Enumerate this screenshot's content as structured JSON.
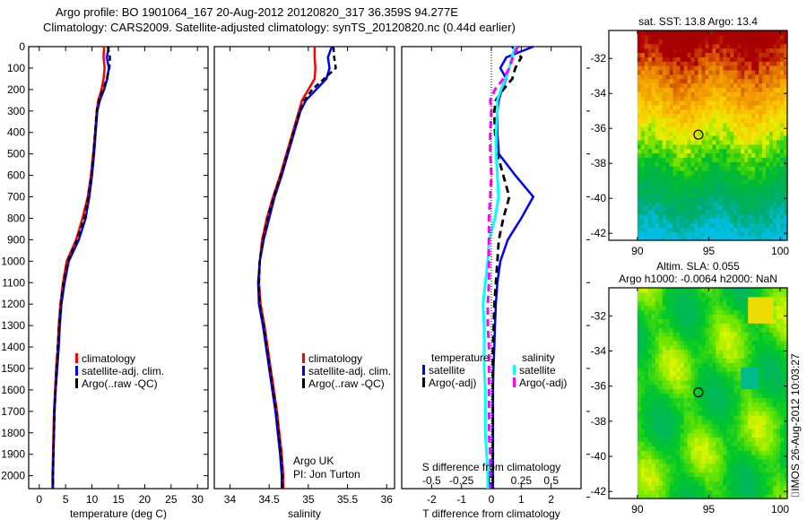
{
  "header": {
    "line1": "Argo profile: BO 1901064_167 20-Aug-2012 20120820_317 36.359S 94.277E",
    "line2": "Climatology: CARS2009. Satellite-adjusted climatology: synTS_20120820.nc (0.44d earlier)"
  },
  "colors": {
    "climatology": "#ff0000",
    "satellite": "#0000ff",
    "argo": "#000000",
    "sal_satellite": "#00ffff",
    "sal_argo": "#ff00ff"
  },
  "stamp": "⌷IMOS 26-Aug-2012 10:03:27",
  "chart_data": [
    {
      "type": "line",
      "name": "temperature-profile",
      "xlabel": "temperature (deg C)",
      "ylabel": "",
      "xlim": [
        -2,
        32
      ],
      "ylim": [
        2060,
        0
      ],
      "xticks": [
        0,
        5,
        10,
        15,
        20,
        25,
        30
      ],
      "yticks": [
        0,
        100,
        200,
        300,
        400,
        500,
        600,
        700,
        800,
        900,
        1000,
        1100,
        1200,
        1300,
        1400,
        1500,
        1600,
        1700,
        1800,
        1900,
        2000
      ],
      "legend": [
        "climatology",
        "satellite-adj. clim.",
        "Argo(..raw -QC)"
      ],
      "legend_position": "center",
      "depth": [
        0,
        50,
        100,
        150,
        200,
        250,
        300,
        400,
        500,
        600,
        700,
        800,
        900,
        1000,
        1100,
        1200,
        1300,
        1400,
        1500,
        1600,
        1700,
        1800,
        1900,
        2000,
        2060
      ],
      "series": [
        {
          "name": "climatology",
          "values": [
            12.3,
            12.2,
            12.4,
            12.2,
            11.8,
            11.2,
            10.9,
            10.6,
            10.2,
            9.8,
            9.2,
            8.2,
            7.0,
            5.2,
            4.5,
            4.0,
            3.7,
            3.5,
            3.2,
            3.0,
            2.8,
            2.7,
            2.6,
            2.5,
            2.5
          ]
        },
        {
          "name": "satellite-adj. clim.",
          "values": [
            13.2,
            12.8,
            13.2,
            12.9,
            12.3,
            11.5,
            11.0,
            10.7,
            10.4,
            10.0,
            9.5,
            8.8,
            7.5,
            5.6,
            4.8,
            4.2,
            3.9,
            3.7,
            3.4,
            3.1,
            2.9,
            2.8,
            2.7,
            2.6,
            2.6
          ]
        },
        {
          "name": "Argo(..raw -QC)",
          "values": [
            13.0,
            13.4,
            13.3,
            12.8,
            12.1,
            11.3,
            10.9,
            10.6,
            10.3,
            9.9,
            9.3,
            8.5,
            7.2,
            5.4,
            4.6,
            4.1,
            3.8,
            3.5,
            3.3,
            3.1,
            2.9,
            2.8,
            2.7,
            2.6,
            2.6
          ]
        }
      ]
    },
    {
      "type": "line",
      "name": "salinity-profile",
      "xlabel": "salinity",
      "xlim": [
        33.8,
        36.1
      ],
      "ylim": [
        2060,
        0
      ],
      "xticks": [
        34,
        34.5,
        35,
        35.5,
        36
      ],
      "legend": [
        "climatology",
        "satellite-adj. clim.",
        "Argo(..raw -QC)"
      ],
      "legend_position": "center-right",
      "annotation": [
        "Argo UK",
        "PI: Jon Turton"
      ],
      "depth": [
        0,
        50,
        100,
        150,
        200,
        250,
        300,
        400,
        500,
        600,
        700,
        800,
        900,
        1000,
        1100,
        1200,
        1300,
        1400,
        1500,
        1600,
        1700,
        1800,
        1900,
        2000,
        2060
      ],
      "series": [
        {
          "name": "climatology",
          "values": [
            35.08,
            35.08,
            35.09,
            35.08,
            35.0,
            34.92,
            34.88,
            34.8,
            34.72,
            34.64,
            34.55,
            34.47,
            34.41,
            34.38,
            34.37,
            34.39,
            34.44,
            34.48,
            34.52,
            34.56,
            34.6,
            34.63,
            34.66,
            34.68,
            34.68
          ]
        },
        {
          "name": "satellite-adj. clim.",
          "values": [
            35.3,
            35.25,
            35.27,
            35.23,
            35.1,
            34.97,
            34.9,
            34.82,
            34.74,
            34.66,
            34.57,
            34.5,
            34.43,
            34.38,
            34.36,
            34.37,
            34.42,
            34.46,
            34.5,
            34.54,
            34.58,
            34.61,
            34.64,
            34.66,
            34.66
          ]
        },
        {
          "name": "Argo(..raw -QC)",
          "values": [
            35.32,
            35.33,
            35.35,
            35.2,
            35.05,
            34.95,
            34.89,
            34.81,
            34.73,
            34.65,
            34.56,
            34.48,
            34.42,
            34.38,
            34.37,
            34.38,
            34.43,
            34.47,
            34.51,
            34.55,
            34.59,
            34.62,
            34.65,
            34.67,
            34.67
          ]
        }
      ]
    },
    {
      "type": "line",
      "name": "difference-profile",
      "xlabel": "T difference from climatology",
      "x2label": "S difference from climatology",
      "xlim": [
        -3,
        3
      ],
      "x2lim": [
        -0.75,
        0.75
      ],
      "ylim": [
        2060,
        0
      ],
      "xticks": [
        -2,
        -1,
        0,
        1,
        2
      ],
      "x2ticks": [
        "-0.5",
        "-0.25",
        "0",
        "0.25",
        "0.5"
      ],
      "legend_groups": [
        {
          "title": "temperature",
          "items": [
            "satellite",
            "Argo(-adj)"
          ]
        },
        {
          "title": "salinity",
          "items": [
            "satellite",
            "Argo(-adj)"
          ]
        }
      ],
      "depth": [
        0,
        50,
        100,
        150,
        200,
        250,
        300,
        400,
        500,
        600,
        700,
        800,
        900,
        1000,
        1100,
        1200,
        1300,
        1400,
        1500,
        1600,
        1700,
        1800,
        1900,
        2000,
        2060
      ],
      "series": [
        {
          "name": "temperature satellite",
          "values": [
            1.4,
            0.5,
            0.3,
            0.5,
            0.35,
            0.25,
            0.2,
            0.2,
            0.25,
            0.8,
            1.4,
            1.0,
            0.55,
            0.3,
            0.2,
            0.15,
            0.12,
            0.1,
            0.07,
            0.05,
            0.05,
            0.05,
            0.05,
            0.05,
            0.05
          ]
        },
        {
          "name": "temperature Argo(-adj)",
          "values": [
            0.7,
            1.0,
            0.8,
            0.7,
            0.4,
            0.15,
            0.1,
            0.12,
            0.2,
            0.4,
            0.6,
            0.4,
            0.25,
            0.2,
            0.15,
            0.1,
            0.08,
            0.05,
            0.05,
            0.05,
            0.05,
            0.05,
            0.05,
            0.05,
            0.05
          ]
        },
        {
          "name": "salinity satellite",
          "values": [
            0.2,
            0.17,
            0.15,
            0.12,
            0.08,
            0.05,
            0.05,
            0.04,
            0.04,
            0.05,
            0.06,
            0.03,
            -0.02,
            -0.03,
            -0.05,
            -0.07,
            -0.06,
            -0.06,
            -0.06,
            -0.05,
            -0.05,
            -0.05,
            -0.04,
            -0.03,
            -0.03
          ]
        },
        {
          "name": "salinity Argo(-adj)",
          "values": [
            0.22,
            0.18,
            0.15,
            0.1,
            0.03,
            -0.01,
            0.0,
            -0.01,
            -0.01,
            0.0,
            -0.01,
            -0.02,
            -0.02,
            -0.02,
            -0.02,
            -0.03,
            -0.03,
            -0.02,
            -0.02,
            -0.02,
            -0.02,
            -0.02,
            -0.01,
            -0.01,
            -0.01
          ]
        }
      ]
    },
    {
      "type": "heatmap",
      "name": "sst-map",
      "title": "sat. SST: 13.8 Argo: 13.4",
      "xlim": [
        88,
        100.5
      ],
      "ylim": [
        -42.4,
        -30.4
      ],
      "xticks": [
        90,
        95,
        100
      ],
      "yticks": [
        -32,
        -34,
        -36,
        -38,
        -40,
        -42
      ],
      "data_xrange": [
        90,
        100.5
      ],
      "marker": {
        "lon": 94.277,
        "lat": -36.359
      }
    },
    {
      "type": "heatmap",
      "name": "sla-map",
      "title": [
        "Altim. SLA: 0.055",
        "Argo h1000: -0.0064 h2000: NaN"
      ],
      "xlim": [
        88,
        100.5
      ],
      "ylim": [
        -42.4,
        -30.4
      ],
      "xticks": [
        90,
        95,
        100
      ],
      "yticks": [
        -32,
        -34,
        -36,
        -38,
        -40,
        -42
      ],
      "data_xrange": [
        90,
        100.5
      ],
      "marker": {
        "lon": 94.277,
        "lat": -36.359
      }
    }
  ]
}
